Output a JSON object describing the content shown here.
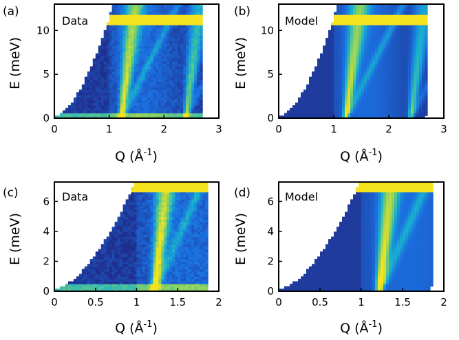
{
  "chart_data": [
    {
      "type": "heatmap",
      "panel_label": "(a)",
      "inset_label": "Data",
      "xlabel": "Q (Å",
      "xlabel_exp": "-1",
      "xlabel_close": ")",
      "ylabel": "E (meV)",
      "xlim": [
        0,
        3
      ],
      "ylim": [
        0,
        13
      ],
      "xticks": [
        "0",
        "1",
        "2",
        "3"
      ],
      "xtick_values": [
        0,
        1,
        2,
        3
      ],
      "yticks": [
        "0",
        "5",
        "10"
      ],
      "ytick_values": [
        0,
        5,
        10
      ],
      "qmax": 2.68,
      "incident_energy_meV": 11.3,
      "elastic_line": true,
      "noise": 0.35,
      "branches": [
        {
          "q0": 1.22,
          "width": 0.045,
          "amplitude": 0.9
        },
        {
          "q0": 2.4,
          "width": 0.045,
          "amplitude": 0.7
        }
      ],
      "colors": [
        "#1f2e8c",
        "#1b6fe0",
        "#19b0cf",
        "#7fd06a",
        "#f5e31e"
      ]
    },
    {
      "type": "heatmap",
      "panel_label": "(b)",
      "inset_label": "Model",
      "xlabel": "Q (Å",
      "xlabel_exp": "-1",
      "xlabel_close": ")",
      "ylabel": "E (meV)",
      "xlim": [
        0,
        3
      ],
      "ylim": [
        0,
        13
      ],
      "xticks": [
        "0",
        "1",
        "2",
        "3"
      ],
      "xtick_values": [
        0,
        1,
        2,
        3
      ],
      "yticks": [
        "0",
        "5",
        "10"
      ],
      "ytick_values": [
        0,
        5,
        10
      ],
      "qmax": 2.68,
      "incident_energy_meV": 11.3,
      "elastic_line": false,
      "noise": 0.0,
      "branches": [
        {
          "q0": 1.22,
          "width": 0.05,
          "amplitude": 0.85
        },
        {
          "q0": 2.4,
          "width": 0.05,
          "amplitude": 0.6
        }
      ],
      "colors": [
        "#1f2e8c",
        "#1b6fe0",
        "#19b0cf",
        "#7fd06a",
        "#f5e31e"
      ]
    },
    {
      "type": "heatmap",
      "panel_label": "(c)",
      "inset_label": "Data",
      "xlabel": "Q (Å",
      "xlabel_exp": "-1",
      "xlabel_close": ")",
      "ylabel": "E (meV)",
      "xlim": [
        0,
        2
      ],
      "ylim": [
        0,
        7.3
      ],
      "xticks": [
        "0",
        "0.5",
        "1",
        "1.5",
        "2"
      ],
      "xtick_values": [
        0,
        0.5,
        1,
        1.5,
        2
      ],
      "yticks": [
        "0",
        "2",
        "4",
        "6"
      ],
      "ytick_values": [
        0,
        2,
        4,
        6
      ],
      "qmax": 1.88,
      "incident_energy_meV": 7.3,
      "elastic_line": true,
      "noise": 0.45,
      "branches": [
        {
          "q0": 1.22,
          "width": 0.04,
          "amplitude": 1.0
        }
      ],
      "colors": [
        "#1f2e8c",
        "#1b6fe0",
        "#19b0cf",
        "#7fd06a",
        "#f5e31e"
      ]
    },
    {
      "type": "heatmap",
      "panel_label": "(d)",
      "inset_label": "Model",
      "xlabel": "Q (Å",
      "xlabel_exp": "-1",
      "xlabel_close": ")",
      "ylabel": "E (meV)",
      "xlim": [
        0,
        2
      ],
      "ylim": [
        0,
        7.3
      ],
      "xticks": [
        "0",
        "0.5",
        "1",
        "1.5",
        "2"
      ],
      "xtick_values": [
        0,
        0.5,
        1,
        1.5,
        2
      ],
      "yticks": [
        "0",
        "2",
        "4",
        "6"
      ],
      "ytick_values": [
        0,
        2,
        4,
        6
      ],
      "qmax": 1.88,
      "incident_energy_meV": 7.3,
      "elastic_line": false,
      "noise": 0.0,
      "branches": [
        {
          "q0": 1.22,
          "width": 0.045,
          "amplitude": 0.95
        }
      ],
      "colors": [
        "#1f2e8c",
        "#1b6fe0",
        "#19b0cf",
        "#7fd06a",
        "#f5e31e"
      ]
    }
  ]
}
